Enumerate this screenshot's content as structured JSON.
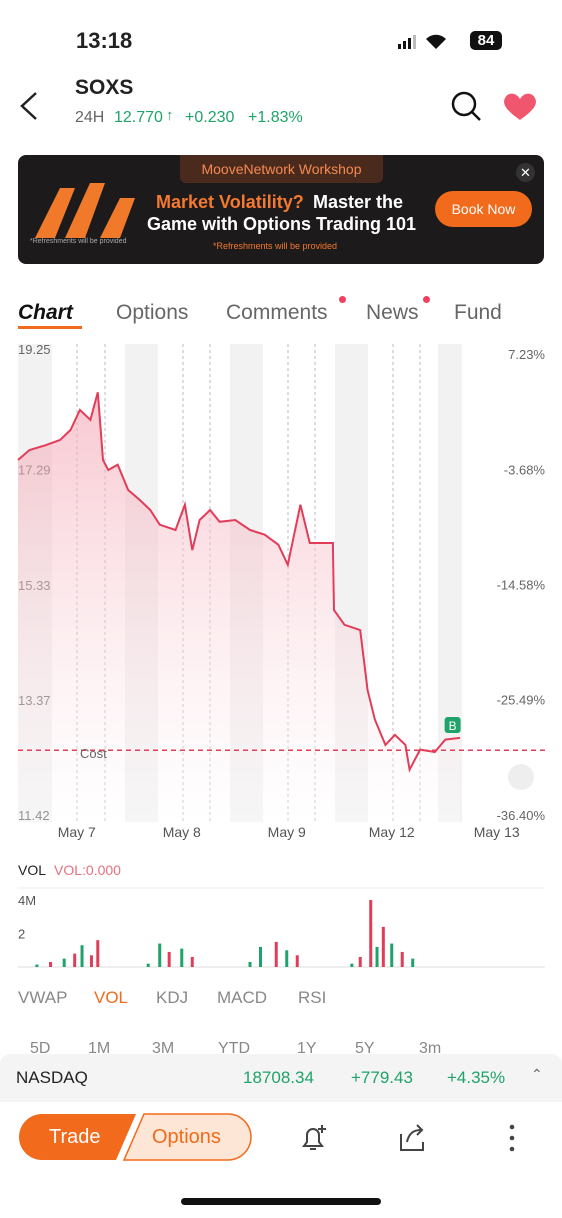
{
  "status": {
    "time": "13:18",
    "battery": "84"
  },
  "header": {
    "symbol": "SOXS",
    "period": "24H",
    "price": "12.770",
    "change": "+0.230",
    "change_pct": "+1.83%"
  },
  "banner": {
    "workshop": "MooveNetwork Workshop",
    "headline_accent": "Market Volatility?",
    "headline_1": "Master the",
    "headline_2": "Game with Options Trading 101",
    "note": "*Refreshments will be provided",
    "small_note": "*Refreshments will be provided",
    "button": "Book Now"
  },
  "tabs": [
    "Chart",
    "Options",
    "Comments",
    "News",
    "Fund"
  ],
  "chart_data": {
    "type": "line",
    "x": [
      0.44,
      0.55,
      0.7,
      0.84,
      0.94,
      1.03,
      1.13,
      1.2,
      1.25,
      1.3,
      1.39,
      1.49,
      1.6,
      1.7,
      1.79,
      1.94,
      2.03,
      2.1,
      2.17,
      2.27,
      2.36,
      2.51,
      2.65,
      2.79,
      2.92,
      3.01,
      3.13,
      3.22,
      3.32,
      3.44,
      3.45,
      3.55,
      3.7,
      3.77,
      3.84,
      3.94,
      4.03,
      4.13,
      4.17,
      4.27,
      4.41,
      4.51,
      4.65
    ],
    "values": [
      17.45,
      17.62,
      17.7,
      17.79,
      17.96,
      18.3,
      18.13,
      18.6,
      17.45,
      17.28,
      17.37,
      16.94,
      16.77,
      16.6,
      16.35,
      16.26,
      16.69,
      15.92,
      16.43,
      16.6,
      16.4,
      16.43,
      16.26,
      16.18,
      16.01,
      15.67,
      16.69,
      16.04,
      16.04,
      16.04,
      14.9,
      14.65,
      14.56,
      13.54,
      13.04,
      12.61,
      12.78,
      12.61,
      12.19,
      12.53,
      12.49,
      12.7,
      12.73
    ],
    "color": "#e23d58",
    "xlim": [
      0.44,
      5.46
    ],
    "xticks": [
      {
        "value": 1,
        "label": "May 7"
      },
      {
        "value": 2,
        "label": "May 8"
      },
      {
        "value": 3,
        "label": "May 9"
      },
      {
        "value": 4,
        "label": "May 12"
      },
      {
        "value": 5,
        "label": "May 13"
      }
    ],
    "ylim": [
      11.42,
      19.25
    ],
    "yticks": [
      19.25,
      17.29,
      15.33,
      13.37,
      11.42
    ],
    "y2lim": [
      -36.4,
      7.23
    ],
    "y2ticks": [
      {
        "value": 7.23,
        "label": "7.23%"
      },
      {
        "value": -3.68,
        "label": "-3.68%"
      },
      {
        "value": -14.58,
        "label": "-14.58%"
      },
      {
        "value": -25.49,
        "label": "-25.49%"
      },
      {
        "value": -36.4,
        "label": "-36.40%"
      }
    ],
    "cost": 12.52,
    "cost_label": "Cost",
    "marker": {
      "x": 4.58,
      "label": "B"
    }
  },
  "volume": {
    "label": "VOL",
    "value_label": "VOL:0.000",
    "ylim": [
      0,
      4.6
    ],
    "yticks": [
      {
        "value": 4,
        "label": "4M"
      },
      2
    ],
    "x": [
      0.62,
      0.75,
      0.88,
      0.98,
      1.05,
      1.14,
      1.2,
      1.68,
      1.79,
      1.88,
      2.0,
      2.1,
      2.65,
      2.75,
      2.9,
      3.0,
      3.1,
      3.62,
      3.7,
      3.8,
      3.86,
      3.92,
      4.0,
      4.1,
      4.2
    ],
    "values": [
      0.15,
      0.3,
      0.5,
      0.8,
      1.3,
      0.7,
      1.6,
      0.2,
      1.4,
      0.9,
      1.1,
      0.6,
      0.3,
      1.2,
      1.5,
      1.0,
      0.7,
      0.2,
      0.6,
      4.0,
      1.2,
      2.4,
      1.4,
      0.9,
      0.5
    ],
    "colors": [
      "#1fa36a",
      "#e23d58",
      "#1fa36a",
      "#e23d58",
      "#1fa36a",
      "#e23d58",
      "#e23d58",
      "#1fa36a",
      "#1fa36a",
      "#e23d58",
      "#1fa36a",
      "#e23d58",
      "#1fa36a",
      "#1fa36a",
      "#e23d58",
      "#1fa36a",
      "#e23d58",
      "#1fa36a",
      "#e23d58",
      "#e23d58",
      "#1fa36a",
      "#e23d58",
      "#1fa36a",
      "#e23d58",
      "#1fa36a"
    ]
  },
  "indicators": [
    "VWAP",
    "VOL",
    "KDJ",
    "MACD",
    "RSI"
  ],
  "ranges": [
    "5D",
    "1M",
    "3M",
    "YTD",
    "1Y",
    "5Y",
    "3m"
  ],
  "index_bar": {
    "name": "NASDAQ",
    "price": "18708.34",
    "change": "+779.43",
    "change_pct": "+4.35%"
  },
  "actions": {
    "trade": "Trade",
    "options": "Options"
  }
}
